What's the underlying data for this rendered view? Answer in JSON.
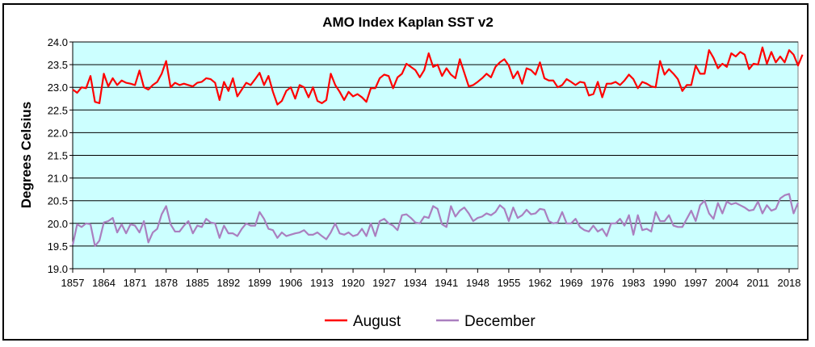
{
  "chart_data": {
    "type": "line",
    "title": "AMO Index Kaplan SST v2",
    "xlabel": "",
    "ylabel": "Degrees Celsius",
    "xlim": [
      1857,
      2020
    ],
    "ylim": [
      19.0,
      24.0
    ],
    "yticks": [
      "19.0",
      "19.5",
      "20.0",
      "20.5",
      "21.0",
      "21.5",
      "22.0",
      "22.5",
      "23.0",
      "23.5",
      "24.0"
    ],
    "xticks": [
      "1857",
      "1864",
      "1871",
      "1878",
      "1885",
      "1892",
      "1899",
      "1906",
      "1913",
      "1920",
      "1927",
      "1934",
      "1941",
      "1948",
      "1955",
      "1962",
      "1969",
      "1976",
      "1983",
      "1990",
      "1997",
      "2004",
      "2011",
      "2018"
    ],
    "grid": true,
    "plot_background": "#ccffff",
    "legend_position": "bottom",
    "series": [
      {
        "name": "August",
        "color": "#ff0000",
        "x_start": 1857,
        "values": [
          22.95,
          22.88,
          23.0,
          22.98,
          23.25,
          22.68,
          22.65,
          23.3,
          23.02,
          23.2,
          23.05,
          23.15,
          23.1,
          23.08,
          23.05,
          23.37,
          23.0,
          22.95,
          23.05,
          23.12,
          23.3,
          23.58,
          23.0,
          23.1,
          23.05,
          23.08,
          23.05,
          23.02,
          23.1,
          23.12,
          23.2,
          23.18,
          23.1,
          22.72,
          23.12,
          22.92,
          23.2,
          22.8,
          22.95,
          23.1,
          23.05,
          23.18,
          23.32,
          23.05,
          23.25,
          22.9,
          22.62,
          22.7,
          22.92,
          23.0,
          22.75,
          23.05,
          23.0,
          22.78,
          23.0,
          22.7,
          22.65,
          22.72,
          23.3,
          23.05,
          22.9,
          22.72,
          22.9,
          22.8,
          22.85,
          22.78,
          22.68,
          22.98,
          22.98,
          23.2,
          23.28,
          23.25,
          22.98,
          23.22,
          23.3,
          23.52,
          23.45,
          23.38,
          23.22,
          23.38,
          23.75,
          23.45,
          23.5,
          23.25,
          23.42,
          23.28,
          23.2,
          23.62,
          23.32,
          23.02,
          23.05,
          23.12,
          23.2,
          23.3,
          23.22,
          23.45,
          23.55,
          23.62,
          23.48,
          23.2,
          23.35,
          23.08,
          23.42,
          23.38,
          23.28,
          23.55,
          23.2,
          23.15,
          23.15,
          23.0,
          23.05,
          23.18,
          23.12,
          23.05,
          23.12,
          23.1,
          22.82,
          22.85,
          23.12,
          22.78,
          23.08,
          23.08,
          23.12,
          23.05,
          23.15,
          23.28,
          23.18,
          22.98,
          23.12,
          23.08,
          23.02,
          23.0,
          23.58,
          23.28,
          23.4,
          23.3,
          23.18,
          22.92,
          23.05,
          23.05,
          23.48,
          23.3,
          23.3,
          23.82,
          23.65,
          23.42,
          23.52,
          23.45,
          23.75,
          23.68,
          23.78,
          23.72,
          23.4,
          23.52,
          23.5,
          23.88,
          23.52,
          23.78,
          23.55,
          23.68,
          23.55,
          23.82,
          23.72,
          23.48,
          23.72
        ]
      },
      {
        "name": "December",
        "color": "#aa7fbf",
        "x_start": 1857,
        "values": [
          19.52,
          19.98,
          19.92,
          20.0,
          19.98,
          19.5,
          19.62,
          20.02,
          20.05,
          20.12,
          19.8,
          19.98,
          19.78,
          19.98,
          19.95,
          19.8,
          20.05,
          19.58,
          19.8,
          19.88,
          20.2,
          20.38,
          19.98,
          19.82,
          19.82,
          19.95,
          20.05,
          19.78,
          19.95,
          19.92,
          20.1,
          20.02,
          20.0,
          19.68,
          19.95,
          19.78,
          19.78,
          19.72,
          19.88,
          20.0,
          19.95,
          19.95,
          20.25,
          20.1,
          19.88,
          19.85,
          19.68,
          19.8,
          19.72,
          19.75,
          19.78,
          19.8,
          19.85,
          19.75,
          19.75,
          19.8,
          19.72,
          19.65,
          19.8,
          20.0,
          19.78,
          19.75,
          19.8,
          19.72,
          19.75,
          19.88,
          19.72,
          20.0,
          19.72,
          20.05,
          20.1,
          20.0,
          19.95,
          19.85,
          20.18,
          20.2,
          20.12,
          20.02,
          20.0,
          20.15,
          20.12,
          20.38,
          20.32,
          19.98,
          19.92,
          20.38,
          20.15,
          20.28,
          20.35,
          20.22,
          20.05,
          20.12,
          20.15,
          20.22,
          20.18,
          20.25,
          20.4,
          20.32,
          20.05,
          20.35,
          20.12,
          20.18,
          20.3,
          20.2,
          20.22,
          20.32,
          20.3,
          20.05,
          20.0,
          20.02,
          20.25,
          20.0,
          20.0,
          20.1,
          19.92,
          19.85,
          19.82,
          19.95,
          19.82,
          19.88,
          19.72,
          20.0,
          20.0,
          20.1,
          19.95,
          20.18,
          19.75,
          20.18,
          19.85,
          19.88,
          19.82,
          20.25,
          20.05,
          20.05,
          20.18,
          19.95,
          19.92,
          19.92,
          20.1,
          20.28,
          20.05,
          20.4,
          20.5,
          20.22,
          20.1,
          20.45,
          20.22,
          20.48,
          20.42,
          20.45,
          20.4,
          20.35,
          20.28,
          20.3,
          20.48,
          20.22,
          20.4,
          20.28,
          20.32,
          20.55,
          20.62,
          20.65,
          20.22,
          20.45
        ]
      }
    ]
  }
}
